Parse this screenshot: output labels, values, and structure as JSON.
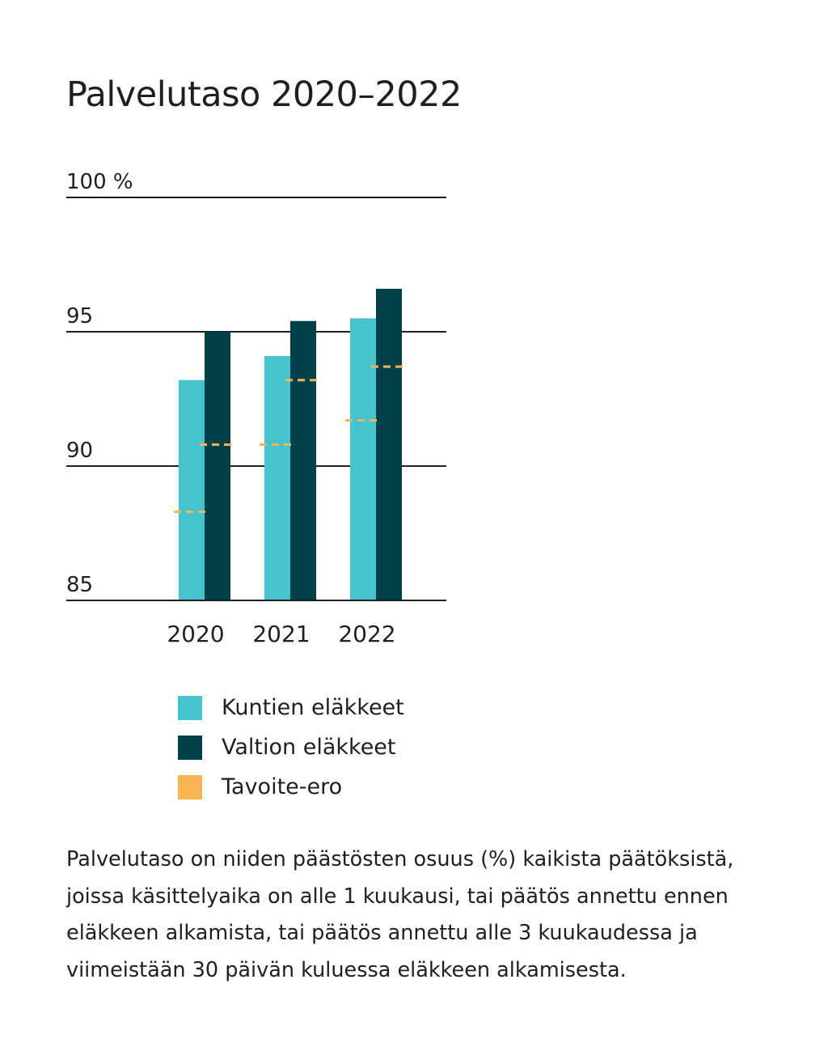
{
  "page": {
    "title": "Palvelutaso 2020–2022"
  },
  "chart_data": {
    "type": "bar",
    "categories": [
      "2020",
      "2021",
      "2022"
    ],
    "series": [
      {
        "name": "Kuntien eläkkeet",
        "values": [
          93.2,
          94.1,
          95.5
        ],
        "target": [
          88.3,
          90.8,
          91.7
        ],
        "color": "#45c3cf"
      },
      {
        "name": "Valtion eläkkeet",
        "values": [
          95.0,
          95.4,
          96.6
        ],
        "target": [
          90.8,
          93.2,
          93.7
        ],
        "color": "#004149"
      }
    ],
    "target_series_name": "Tavoite-ero",
    "target_color": "#fbb454",
    "ylim": [
      85,
      100
    ],
    "yticks": [
      85,
      90,
      95,
      100
    ],
    "ytick_labels": [
      "85",
      "90",
      "95",
      "100 %"
    ],
    "grid": true,
    "legend_position": "bottom"
  },
  "legend": {
    "items": [
      {
        "label": "Kuntien eläkkeet",
        "color": "#45c3cf"
      },
      {
        "label": "Valtion eläkkeet",
        "color": "#004149"
      },
      {
        "label": "Tavoite-ero",
        "color": "#fbb454"
      }
    ]
  },
  "footnote": "Palvelutaso on niiden päästösten osuus (%) kaikista päätöksistä, joissa käsittelyaika on alle 1 kuukausi, tai päätös annettu ennen eläkkeen alkamista, tai päätös annettu alle 3 kuukaudessa ja viimeistään 30 päivän kuluessa eläkkeen alkamisesta."
}
